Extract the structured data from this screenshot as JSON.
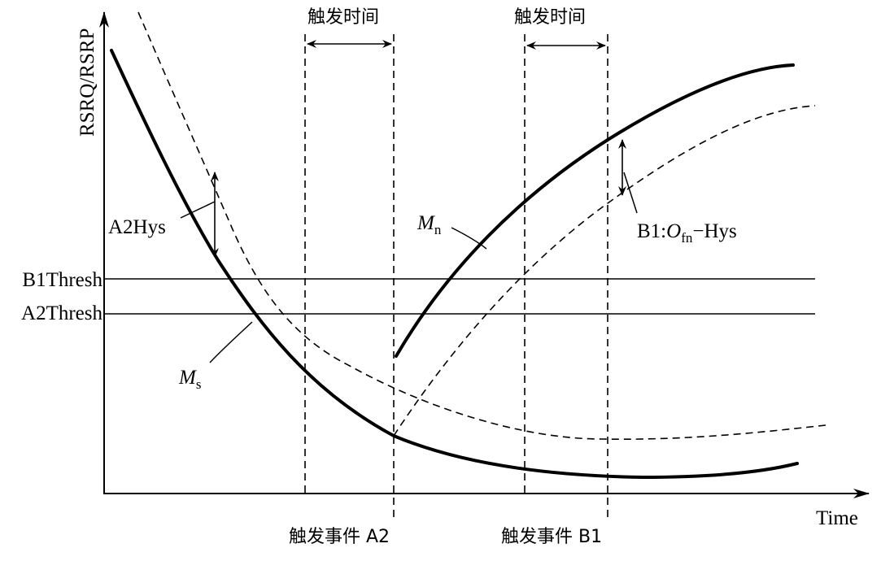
{
  "axes": {
    "y_label": "RSRQ/RSRP",
    "x_label": "Time"
  },
  "thresholds": [
    {
      "label": "B1Thresh"
    },
    {
      "label": "A2Thresh"
    }
  ],
  "time_to_trigger": [
    {
      "label": "触发时间"
    },
    {
      "label": "触发时间"
    }
  ],
  "events": [
    {
      "label": "触发事件 A2"
    },
    {
      "label": "触发事件 B1"
    }
  ],
  "curves": {
    "serving": {
      "symbol": "M",
      "subscript": "s"
    },
    "neighbor": {
      "symbol": "M",
      "subscript": "n"
    }
  },
  "hysteresis": {
    "a2": {
      "label": "A2Hys"
    },
    "b1": {
      "prefix": "B1:",
      "symbol": "O",
      "subscript": "fn",
      "suffix": "−Hys"
    }
  }
}
